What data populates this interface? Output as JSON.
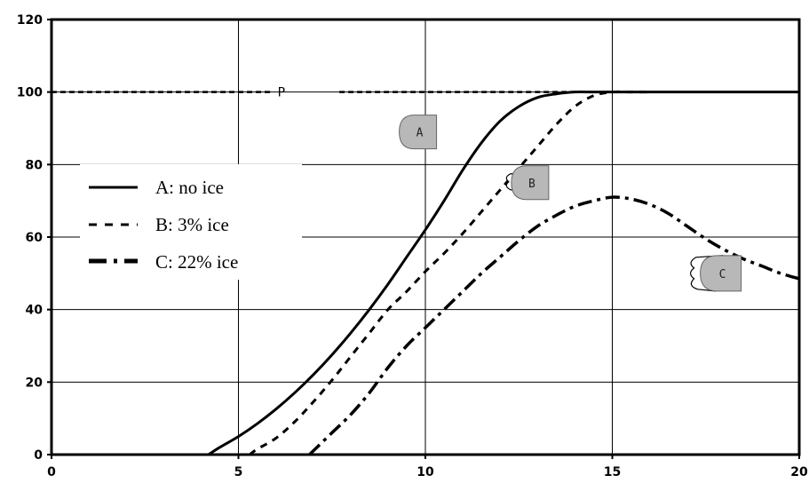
{
  "chart_data": {
    "type": "line",
    "title": "",
    "xlabel": "",
    "ylabel": "",
    "xlim": [
      0,
      20
    ],
    "ylim": [
      0,
      120
    ],
    "xticks": [
      0,
      5,
      10,
      15,
      20
    ],
    "yticks": [
      0,
      20,
      40,
      60,
      80,
      100,
      120
    ],
    "grid": true,
    "legend": {
      "placement": "center-left",
      "entries": [
        "A: no ice",
        "B: 3% ice",
        "C: 22% ice"
      ]
    },
    "series": [
      {
        "name": "A: no ice",
        "style": "solid",
        "x": [
          4.2,
          4.5,
          5,
          5.5,
          6,
          6.5,
          7,
          7.5,
          8,
          8.5,
          9,
          9.5,
          10,
          10.5,
          11,
          11.5,
          12,
          12.5,
          13,
          13.5,
          14,
          14.5,
          15,
          20
        ],
        "y": [
          0,
          2,
          5,
          8.5,
          12.5,
          17,
          22,
          27.5,
          33.5,
          40,
          47,
          54.5,
          62,
          70,
          78.5,
          86,
          92,
          96,
          98.5,
          99.5,
          100,
          100,
          100,
          100
        ]
      },
      {
        "name": "B: 3% ice",
        "style": "dashed",
        "x": [
          5.3,
          5.5,
          6,
          6.5,
          7,
          7.5,
          8,
          8.5,
          9,
          9.5,
          10,
          10.5,
          11,
          11.5,
          12,
          12.5,
          13,
          13.5,
          14,
          14.5,
          15,
          15.5,
          16
        ],
        "y": [
          0,
          1.5,
          4.5,
          9,
          14.5,
          20.5,
          27,
          33.5,
          40,
          45,
          50.5,
          55.5,
          61,
          67,
          73,
          79,
          85,
          91,
          96,
          99,
          100,
          100,
          100
        ]
      },
      {
        "name": "C: 22% ice",
        "style": "dash-dot",
        "x": [
          6.9,
          7.5,
          8,
          8.5,
          9,
          9.5,
          10,
          10.5,
          11,
          11.5,
          12,
          12.5,
          13,
          13.5,
          14,
          14.5,
          15,
          15.5,
          16,
          16.5,
          17,
          17.5,
          18,
          18.5,
          19,
          19.5,
          20
        ],
        "y": [
          0,
          6,
          11,
          17,
          24,
          30,
          35,
          40,
          45,
          50,
          54.5,
          59,
          63,
          66,
          68.5,
          70,
          71,
          70.5,
          69,
          66.5,
          63,
          59.5,
          56.5,
          54,
          52,
          50,
          48.5
        ]
      },
      {
        "name": "P",
        "style": "dotted",
        "segments": [
          {
            "x": [
              0,
              5.9
            ],
            "y": [
              100,
              100
            ]
          },
          {
            "x": [
              7.7,
              15.2
            ],
            "y": [
              100,
              100
            ]
          }
        ]
      }
    ],
    "annotations": [
      {
        "text": "P",
        "x": 6.0,
        "y": 100
      },
      {
        "text": "A",
        "x": 9.8,
        "y": 89
      },
      {
        "text": "B",
        "x": 12.8,
        "y": 75
      },
      {
        "text": "C",
        "x": 17.9,
        "y": 50
      }
    ]
  }
}
